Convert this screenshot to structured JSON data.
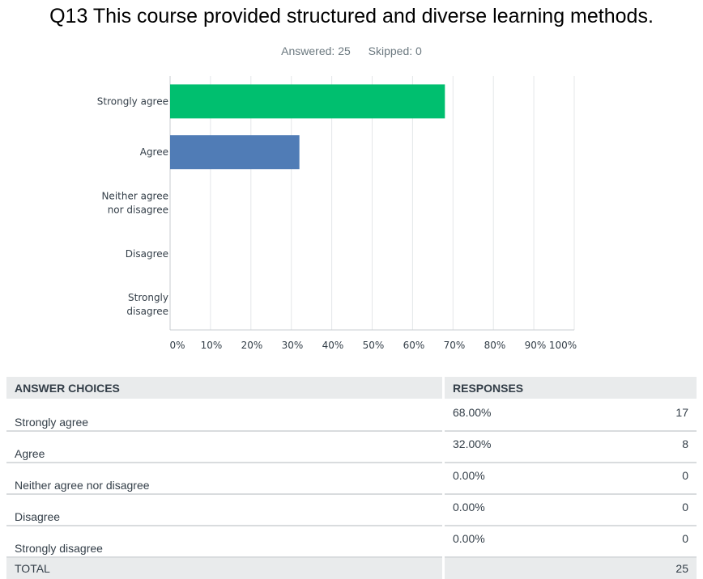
{
  "title": "Q13 This course provided structured and diverse learning methods.",
  "answered": "Answered: 25",
  "skipped": "Skipped: 0",
  "chart_data": {
    "type": "bar",
    "orientation": "horizontal",
    "categories": [
      "Strongly agree",
      "Agree",
      "Neither agree nor disagree",
      "Disagree",
      "Strongly disagree"
    ],
    "category_lines": [
      [
        "Strongly agree"
      ],
      [
        "Agree"
      ],
      [
        "Neither agree",
        "nor disagree"
      ],
      [
        "Disagree"
      ],
      [
        "Strongly",
        "disagree"
      ]
    ],
    "values": [
      68,
      32,
      0,
      0,
      0
    ],
    "colors": [
      "#00bf6f",
      "#507cb6",
      "#f9be00",
      "#6bc8cd",
      "#ff8b4f"
    ],
    "xticks": [
      "0%",
      "10%",
      "20%",
      "30%",
      "40%",
      "50%",
      "60%",
      "70%",
      "80%",
      "90%",
      "100%"
    ],
    "xlim": [
      0,
      100
    ],
    "grid": true
  },
  "table": {
    "headers": [
      "ANSWER CHOICES",
      "RESPONSES"
    ],
    "rows": [
      {
        "choice": "Strongly agree",
        "percent": "68.00%",
        "count": "17"
      },
      {
        "choice": "Agree",
        "percent": "32.00%",
        "count": "8"
      },
      {
        "choice": "Neither agree nor disagree",
        "percent": "0.00%",
        "count": "0"
      },
      {
        "choice": "Disagree",
        "percent": "0.00%",
        "count": "0"
      },
      {
        "choice": "Strongly disagree",
        "percent": "0.00%",
        "count": "0"
      }
    ],
    "total_label": "TOTAL",
    "total_count": "25"
  }
}
